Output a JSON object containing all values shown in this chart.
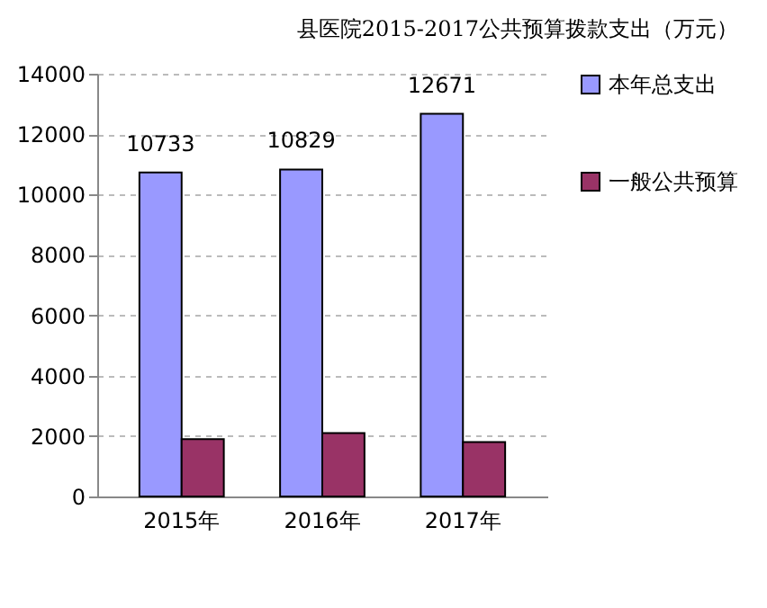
{
  "chart_data": {
    "type": "bar",
    "title": "县医院2015-2017公共预算拨款支出（万元）",
    "categories": [
      "2015年",
      "2016年",
      "2017年"
    ],
    "series": [
      {
        "name": "本年总支出",
        "color": "#9999ff",
        "values": [
          10733,
          10829,
          12671
        ],
        "value_labels": [
          "10733",
          "10829",
          "12671"
        ]
      },
      {
        "name": "一般公共预算",
        "color": "#993366",
        "values": [
          1900,
          2100,
          1800
        ]
      }
    ],
    "ylim": [
      0,
      14000
    ],
    "yticks": [
      0,
      2000,
      4000,
      6000,
      8000,
      10000,
      12000,
      14000
    ],
    "grid": "y",
    "legend": "right"
  }
}
